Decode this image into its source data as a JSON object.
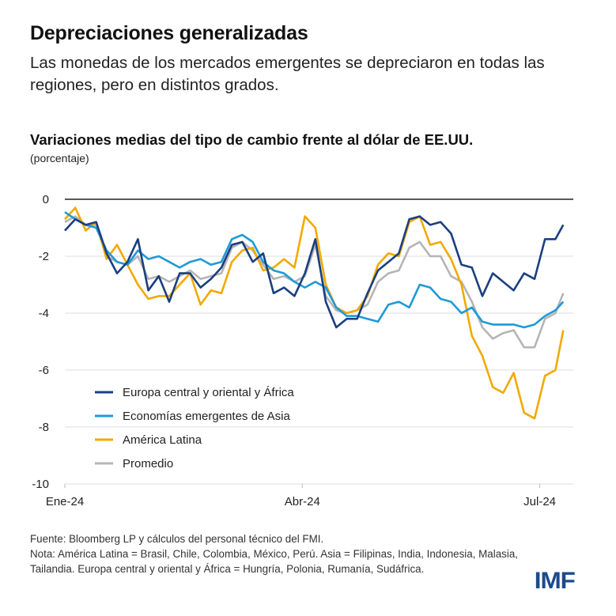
{
  "header": {
    "title": "Depreciaciones generalizadas",
    "subtitle": "Las monedas de los mercados emergentes se depreciaron en todas las regiones, pero en distintos grados."
  },
  "chart_data": {
    "type": "line",
    "title": "Variaciones medias del tipo de cambio frente al dólar de EE.UU.",
    "ylabel": "(porcentaje)",
    "xlabel": "",
    "ylim": [
      -10,
      0
    ],
    "yticks": [
      "0",
      "-2",
      "-4",
      "-6",
      "-8",
      "-10"
    ],
    "ytick_values": [
      0,
      -2,
      -4,
      -6,
      -8,
      -10
    ],
    "xticks": [
      {
        "label": "Ene-24",
        "date": "2024-01-01"
      },
      {
        "label": "Abr-24",
        "date": "2024-04-01"
      },
      {
        "label": "Jul-24",
        "date": "2024-07-01"
      }
    ],
    "xlim": [
      "2024-01-01",
      "2024-07-13"
    ],
    "grid": true,
    "legend_position": "bottom-left",
    "x": [
      "2024-01-01",
      "2024-01-05",
      "2024-01-09",
      "2024-01-13",
      "2024-01-17",
      "2024-01-21",
      "2024-01-25",
      "2024-01-29",
      "2024-02-02",
      "2024-02-06",
      "2024-02-10",
      "2024-02-14",
      "2024-02-18",
      "2024-02-22",
      "2024-02-26",
      "2024-03-01",
      "2024-03-05",
      "2024-03-09",
      "2024-03-13",
      "2024-03-17",
      "2024-03-21",
      "2024-03-25",
      "2024-03-29",
      "2024-04-02",
      "2024-04-06",
      "2024-04-10",
      "2024-04-14",
      "2024-04-18",
      "2024-04-22",
      "2024-04-26",
      "2024-04-30",
      "2024-05-04",
      "2024-05-08",
      "2024-05-12",
      "2024-05-16",
      "2024-05-20",
      "2024-05-24",
      "2024-05-28",
      "2024-06-01",
      "2024-06-05",
      "2024-06-09",
      "2024-06-13",
      "2024-06-17",
      "2024-06-21",
      "2024-06-25",
      "2024-06-29",
      "2024-07-03",
      "2024-07-07",
      "2024-07-10"
    ],
    "series": [
      {
        "name": "Europa central y oriental y África",
        "color": "#1b3f80",
        "values": [
          -1.1,
          -0.7,
          -0.9,
          -0.8,
          -1.9,
          -2.6,
          -2.2,
          -1.4,
          -3.2,
          -2.7,
          -3.6,
          -2.6,
          -2.6,
          -3.1,
          -2.8,
          -2.4,
          -1.6,
          -1.5,
          -2.2,
          -1.9,
          -3.3,
          -3.1,
          -3.4,
          -2.6,
          -1.4,
          -3.6,
          -4.5,
          -4.2,
          -4.2,
          -3.3,
          -2.5,
          -2.2,
          -1.9,
          -0.7,
          -0.6,
          -0.9,
          -0.8,
          -1.2,
          -2.3,
          -2.4,
          -3.4,
          -2.6,
          -2.9,
          -3.2,
          -2.6,
          -2.8,
          -1.4,
          -1.4,
          -0.9
        ]
      },
      {
        "name": "Economías emergentes de Asia",
        "color": "#1f9ad6",
        "values": [
          -0.45,
          -0.7,
          -0.9,
          -1.0,
          -1.8,
          -2.2,
          -2.3,
          -1.8,
          -2.1,
          -2.0,
          -2.2,
          -2.4,
          -2.2,
          -2.1,
          -2.3,
          -2.2,
          -1.4,
          -1.25,
          -1.5,
          -2.2,
          -2.5,
          -2.6,
          -2.9,
          -3.1,
          -2.9,
          -3.1,
          -3.8,
          -4.1,
          -4.1,
          -4.2,
          -4.3,
          -3.7,
          -3.6,
          -3.8,
          -3.0,
          -3.1,
          -3.5,
          -3.6,
          -4.0,
          -3.8,
          -4.3,
          -4.4,
          -4.4,
          -4.4,
          -4.5,
          -4.4,
          -4.1,
          -3.9,
          -3.6
        ]
      },
      {
        "name": "América Latina",
        "color": "#f2a900",
        "values": [
          -0.7,
          -0.3,
          -1.1,
          -0.8,
          -2.1,
          -1.6,
          -2.3,
          -3.0,
          -3.5,
          -3.4,
          -3.4,
          -3.0,
          -2.6,
          -3.7,
          -3.2,
          -3.3,
          -2.2,
          -1.8,
          -1.7,
          -2.5,
          -2.4,
          -2.1,
          -2.4,
          -0.6,
          -1.0,
          -3.0,
          -3.8,
          -4.0,
          -3.9,
          -3.4,
          -2.3,
          -1.9,
          -2.0,
          -0.8,
          -0.6,
          -1.6,
          -1.5,
          -2.1,
          -3.0,
          -4.8,
          -5.5,
          -6.6,
          -6.8,
          -6.1,
          -7.5,
          -7.7,
          -6.2,
          -6.0,
          -4.6
        ]
      },
      {
        "name": "Promedio",
        "color": "#b5b5b5",
        "values": [
          -0.8,
          -0.6,
          -0.9,
          -0.9,
          -2.0,
          -2.2,
          -2.3,
          -2.0,
          -2.8,
          -2.7,
          -2.9,
          -2.7,
          -2.5,
          -2.8,
          -2.7,
          -2.6,
          -1.7,
          -1.5,
          -1.8,
          -2.3,
          -2.8,
          -2.7,
          -2.9,
          -2.7,
          -1.6,
          -3.4,
          -3.9,
          -4.0,
          -3.9,
          -3.7,
          -2.9,
          -2.6,
          -2.5,
          -1.7,
          -1.5,
          -2.0,
          -2.0,
          -2.7,
          -2.9,
          -3.6,
          -4.5,
          -4.9,
          -4.7,
          -4.6,
          -5.2,
          -5.2,
          -4.2,
          -4.0,
          -3.3
        ]
      }
    ]
  },
  "footer": {
    "source": "Fuente: Bloomberg LP y cálculos del personal técnico del FMI.",
    "note": "Nota: América Latina = Brasil, Chile, Colombia, México, Perú. Asia = Filipinas, India, Indonesia, Malasia, Tailandia. Europa central y oriental y África = Hungría, Polonia, Rumanía, Sudáfrica.",
    "logo": "IMF"
  }
}
